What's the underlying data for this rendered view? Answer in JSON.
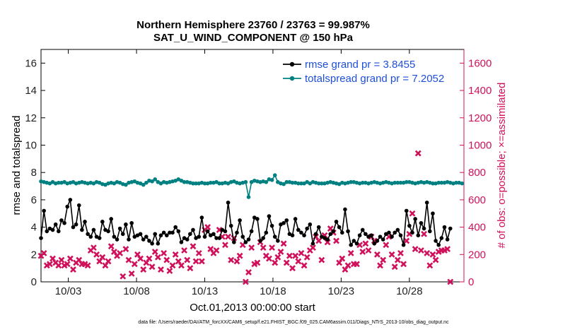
{
  "chart_data": {
    "type": "line",
    "title_line1": "Northern Hemisphere 23760 / 23763 = 99.987%",
    "title_line2": "SAT_U_WIND_COMPONENT @ 150 hPa",
    "xlabel": "Oct.01,2013 00:00:00 start",
    "ylabel_left": "rmse and totalspread",
    "ylabel_right": "# of obs: o=possible; ×=assimilated",
    "footer": "data file: /Users/raeder/DAI/ATM_forcXX/CAM6_setup/f.e21.FHIST_BGC.f09_025.CAM6assim.011/Diags_NTrS_2013-10/obs_diag_output.nc",
    "xlim": [
      1,
      32
    ],
    "ylim_left": [
      0,
      17
    ],
    "ylim_right": [
      0,
      1700
    ],
    "x_ticks": [
      {
        "x": 3,
        "label": "10/03"
      },
      {
        "x": 8,
        "label": "10/08"
      },
      {
        "x": 13,
        "label": "10/13"
      },
      {
        "x": 18,
        "label": "10/18"
      },
      {
        "x": 23,
        "label": "10/23"
      },
      {
        "x": 28,
        "label": "10/28"
      }
    ],
    "y_ticks_left": [
      0,
      2,
      4,
      6,
      8,
      10,
      12,
      14,
      16
    ],
    "y_ticks_right": [
      0,
      200,
      400,
      600,
      800,
      1000,
      1200,
      1400,
      1600
    ],
    "colors": {
      "rmse": "#000000",
      "spread": "#008080",
      "obs": "#d0105a",
      "legend_text": "#1f4fd8",
      "axis": "#000000"
    },
    "series": [
      {
        "name": "rmse grand pr = 3.8455",
        "axis": "left",
        "values": [
          3.2,
          5.2,
          3.7,
          3.9,
          3.8,
          4.2,
          3.7,
          4.5,
          4.3,
          5.5,
          6.0,
          4.0,
          4.2,
          5.6,
          3.8,
          4.4,
          3.5,
          3.3,
          3.8,
          3.3,
          3.2,
          4.4,
          3.8,
          3.7,
          4.6,
          3.3,
          3.1,
          3.9,
          3.5,
          4.2,
          3.1,
          4.3,
          3.3,
          3.4,
          3.5,
          3.1,
          3.3,
          3.0,
          2.8,
          3.5,
          2.8,
          3.4,
          3.6,
          3.4,
          3.6,
          3.6,
          4.0,
          3.7,
          2.9,
          3.2,
          3.1,
          3.5,
          3.8,
          3.2,
          3.3,
          4.7,
          3.3,
          3.7,
          3.4,
          3.5,
          3.2,
          3.2,
          3.8,
          3.7,
          5.8,
          4.1,
          2.9,
          3.6,
          4.5,
          3.3,
          2.9,
          3.1,
          3.7,
          4.7,
          4.6,
          3.0,
          3.2,
          3.6,
          4.8,
          4.1,
          3.3,
          3.0,
          4.2,
          4.3,
          4.5,
          3.5,
          3.4,
          4.6,
          3.8,
          3.6,
          3.4,
          3.9,
          4.2,
          2.8,
          3.5,
          4.0,
          3.3,
          3.2,
          3.1,
          3.5,
          3.7,
          4.4,
          4.0,
          3.6,
          5.3,
          3.7,
          2.7,
          3.0,
          2.8,
          3.4,
          3.8,
          3.5,
          3.3,
          3.4,
          2.8,
          3.0,
          3.3,
          3.1,
          3.5,
          3.6,
          3.3,
          3.6,
          3.8,
          3.4,
          2.7,
          5.2,
          4.1,
          3.6,
          4.6,
          3.4,
          4.3,
          3.9,
          5.8,
          3.7,
          5.0,
          3.0,
          2.7,
          3.2,
          4.0,
          3.1,
          3.9
        ],
        "x_start": 1,
        "x_step": 0.2143
      },
      {
        "name": "totalspread grand pr = 7.2052",
        "axis": "left",
        "values": [
          7.35,
          7.3,
          7.25,
          7.2,
          7.3,
          7.2,
          7.25,
          7.25,
          7.3,
          7.2,
          7.25,
          7.3,
          7.2,
          7.25,
          7.3,
          7.25,
          7.2,
          7.25,
          7.2,
          7.3,
          7.25,
          7.15,
          7.1,
          7.2,
          7.25,
          7.2,
          7.3,
          7.25,
          7.15,
          7.1,
          7.25,
          7.3,
          7.35,
          7.25,
          7.2,
          7.1,
          7.25,
          7.4,
          7.35,
          7.5,
          7.3,
          7.2,
          7.3,
          7.25,
          7.3,
          7.35,
          7.4,
          7.5,
          7.4,
          7.3,
          7.3,
          7.25,
          7.2,
          7.2,
          7.2,
          7.25,
          7.2,
          7.2,
          7.25,
          7.25,
          7.3,
          7.2,
          7.2,
          7.25,
          7.2,
          7.3,
          7.35,
          7.25,
          7.2,
          7.25,
          7.3,
          6.2,
          7.3,
          7.4,
          7.35,
          7.3,
          7.35,
          7.3,
          7.5,
          7.45,
          7.8,
          7.3,
          7.2,
          7.15,
          7.3,
          7.3,
          7.25,
          7.25,
          7.2,
          7.2,
          7.2,
          7.3,
          7.2,
          7.3,
          7.25,
          7.2,
          7.2,
          7.2,
          7.25,
          7.3,
          7.25,
          7.2,
          7.15,
          7.25,
          7.2,
          7.25,
          7.3,
          7.3,
          7.25,
          7.2,
          7.25,
          7.25,
          7.2,
          7.25,
          7.3,
          7.25,
          7.2,
          7.25,
          7.3,
          7.25,
          7.2,
          7.25,
          7.25,
          7.25,
          7.25,
          7.3,
          7.3,
          7.25,
          7.2,
          7.25,
          7.3,
          7.25,
          7.3,
          7.25,
          7.2,
          7.2,
          7.25,
          7.25,
          7.25,
          7.3,
          7.25,
          7.2,
          7.25,
          7.25,
          7.2
        ],
        "x_start": 1,
        "x_step": 0.2143
      },
      {
        "name": "assimilated",
        "axis": "right",
        "marker": "x",
        "values": [
          190,
          210,
          120,
          130,
          170,
          140,
          120,
          160,
          120,
          130,
          170,
          90,
          140,
          160,
          130,
          130,
          120,
          230,
          250,
          200,
          150,
          180,
          120,
          150,
          260,
          220,
          190,
          210,
          40,
          240,
          160,
          60,
          130,
          200,
          170,
          90,
          140,
          170,
          110,
          220,
          180,
          90,
          210,
          160,
          80,
          120,
          200,
          150,
          120,
          230,
          160,
          100,
          260,
          150,
          210,
          150,
          380,
          400,
          240,
          210,
          230,
          380,
          330,
          270,
          330,
          160,
          320,
          150,
          190,
          270,
          0,
          70,
          250,
          130,
          140,
          290,
          250,
          190,
          170,
          250,
          140,
          180,
          220,
          280,
          140,
          190,
          100,
          190,
          150,
          210,
          120,
          180,
          230,
          250,
          330,
          300,
          160,
          340,
          290,
          390,
          360,
          300,
          140,
          170,
          90,
          120,
          210,
          130,
          130,
          270,
          220,
          280,
          230,
          330,
          300,
          200,
          120,
          160,
          270,
          330,
          200,
          110,
          160,
          210,
          130,
          300,
          350,
          500,
          240,
          940,
          230,
          350,
          210,
          120,
          200,
          160,
          220,
          230,
          230,
          240,
          0
        ],
        "x_start": 1,
        "x_step": 0.2143
      }
    ]
  }
}
